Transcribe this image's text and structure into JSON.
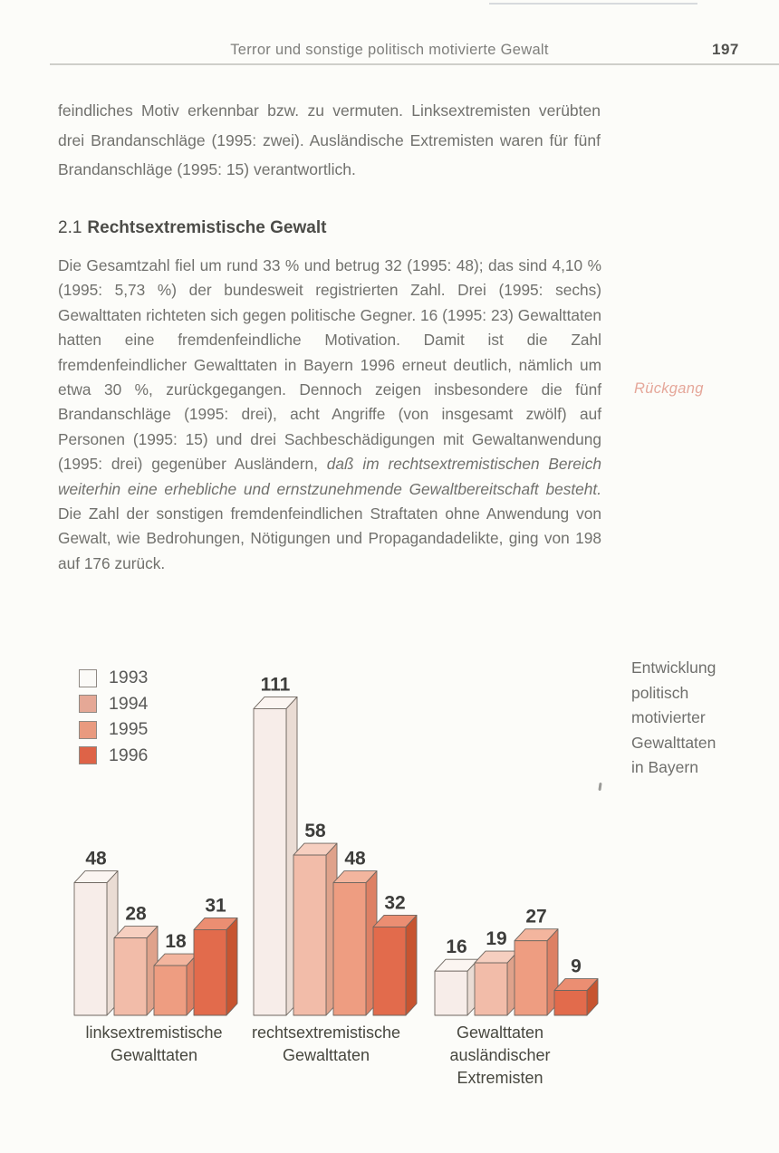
{
  "page": {
    "header": {
      "title": "Terror und sonstige politisch motivierte Gewalt",
      "page_number": "197"
    },
    "paragraph1": "feindliches Motiv erkennbar bzw. zu vermuten. Linksextremisten verübten drei Brandanschläge (1995: zwei). Ausländische Extremisten waren für fünf Brandanschläge (1995: 15) verantwortlich.",
    "section": {
      "number": "2.1",
      "title": "Rechtsextremistische Gewalt"
    },
    "paragraph2": {
      "part1": "Die Gesamtzahl fiel um rund 33 % und betrug 32 (1995: 48); das sind 4,10 % (1995: 5,73 %) der bundesweit registrierten Zahl. Drei (1995: sechs) Gewalttaten richteten sich gegen politische Gegner. 16 (1995: 23) Gewalttaten hatten eine fremdenfeindliche Motivation. Damit ist die Zahl fremdenfeindlicher Gewalttaten in Bayern 1996 erneut deutlich, nämlich um etwa 30 %, zurückgegangen. Dennoch zeigen insbesondere die fünf Brandanschläge (1995: drei), acht Angriffe (von insgesamt zwölf) auf Personen (1995: 15) und drei Sachbeschädigungen mit Gewaltanwendung (1995: drei) gegenüber Ausländern, ",
      "part2_italic": "daß im rechtsextremistischen Bereich weiterhin eine erhebliche und ernstzunehmende Gewaltbereitschaft besteht.",
      "part3": " Die Zahl der sonstigen fremdenfeindlichen Straftaten ohne Anwendung von Gewalt, wie Bedrohungen, Nötigungen und Propagandadelikte, ging von 198 auf 176 zurück."
    },
    "margin_note": "Rückgang"
  },
  "chart_data": {
    "type": "bar",
    "projection": "3d-oblique",
    "title": "Entwicklung politisch motivierter Gewalttaten in Bayern",
    "caption_lines": [
      "Entwicklung",
      "politisch",
      "motivierter",
      "Gewalttaten",
      "in Bayern"
    ],
    "categories": [
      "linksextremistische Gewalttaten",
      "rechtsextremistische Gewalttaten",
      "Gewalttaten ausländischer Extremisten"
    ],
    "category_label_lines": [
      [
        "linksextremistische",
        "Gewalttaten"
      ],
      [
        "rechtsextremistische",
        "Gewalttaten"
      ],
      [
        "Gewalttaten",
        "ausländischer",
        "Extremisten"
      ]
    ],
    "series": [
      {
        "name": "1993",
        "values": [
          48,
          111,
          16
        ],
        "front": "#f7ede9",
        "top": "#fbf5f1",
        "side": "#eadcd4",
        "swatch": "#fbfaf7"
      },
      {
        "name": "1994",
        "values": [
          28,
          58,
          19
        ],
        "front": "#f2bca9",
        "top": "#f6cfc0",
        "side": "#dfa28b",
        "swatch": "#e5a896"
      },
      {
        "name": "1995",
        "values": [
          18,
          48,
          27
        ],
        "front": "#ee9d81",
        "top": "#f3b59e",
        "side": "#dd8064",
        "swatch": "#e99a7f"
      },
      {
        "name": "1996",
        "values": [
          31,
          32,
          9
        ],
        "front": "#e26b4c",
        "top": "#eb8e72",
        "side": "#c75430",
        "swatch": "#de6347"
      }
    ],
    "value_labels": true,
    "axes_visible": false,
    "legend_position": "top-left"
  }
}
